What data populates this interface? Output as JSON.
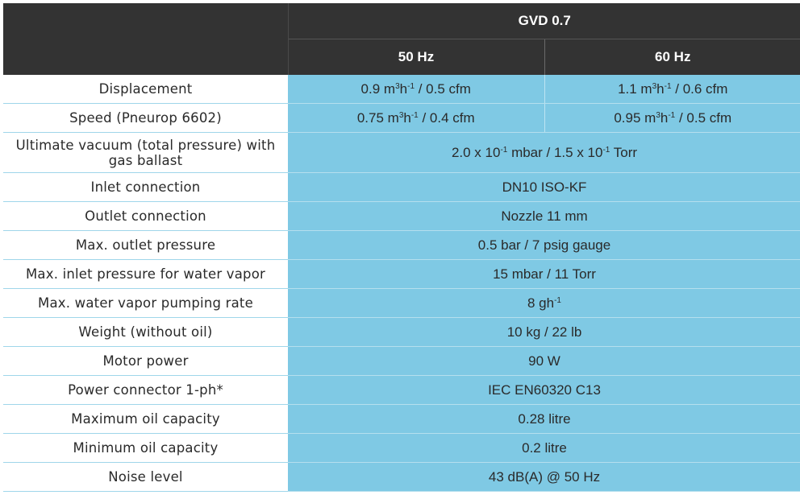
{
  "header": {
    "model": "GVD 0.7",
    "freq_50": "50 Hz",
    "freq_60": "60 Hz"
  },
  "rows": {
    "displacement": {
      "label": "Displacement",
      "v50": {
        "a": "0.9 m",
        "a_sup": "3",
        "b": "h",
        "b_sup": "-1",
        "c": " / 0.5 cfm"
      },
      "v60": {
        "a": "1.1 m",
        "a_sup": "3",
        "b": "h",
        "b_sup": "-1",
        "c": " / 0.6 cfm"
      }
    },
    "speed": {
      "label": "Speed (Pneurop 6602)",
      "v50": {
        "a": "0.75 m",
        "a_sup": "3",
        "b": "h",
        "b_sup": "-1",
        "c": " / 0.4 cfm"
      },
      "v60": {
        "a": "0.95 m",
        "a_sup": "3",
        "b": "h",
        "b_sup": "-1",
        "c": " / 0.5 cfm"
      }
    },
    "ultimate_vacuum": {
      "label": "Ultimate vacuum (total pressure) with gas ballast",
      "value": {
        "a": "2.0 x 10",
        "a_sup": "-1",
        "b": " mbar / 1.5 x 10",
        "b_sup": "-1",
        "c": " Torr"
      }
    },
    "inlet_connection": {
      "label": "Inlet connection",
      "value": "DN10 ISO-KF"
    },
    "outlet_connection": {
      "label": "Outlet connection",
      "value": "Nozzle 11 mm"
    },
    "max_outlet_pressure": {
      "label": "Max. outlet pressure",
      "value": "0.5 bar / 7 psig gauge"
    },
    "max_inlet_pressure": {
      "label": "Max. inlet pressure for water vapor",
      "value": "15 mbar / 11 Torr"
    },
    "max_water_vapor": {
      "label": "Max. water vapor pumping rate",
      "value": {
        "a": "8 gh",
        "a_sup": "-1"
      }
    },
    "weight": {
      "label": "Weight (without oil)",
      "value": "10 kg / 22 lb"
    },
    "motor_power": {
      "label": "Motor power",
      "value": "90 W"
    },
    "power_connector": {
      "label": "Power connector 1-ph*",
      "value": "IEC EN60320 C13"
    },
    "max_oil": {
      "label": "Maximum oil capacity",
      "value": "0.28 litre"
    },
    "min_oil": {
      "label": "Minimum oil capacity",
      "value": "0.2 litre"
    },
    "noise": {
      "label": "Noise level",
      "value": "43 dB(A) @ 50 Hz"
    }
  },
  "colors": {
    "header_bg": "#333333",
    "value_bg": "#7fc9e4",
    "label_bg": "#ffffff"
  }
}
